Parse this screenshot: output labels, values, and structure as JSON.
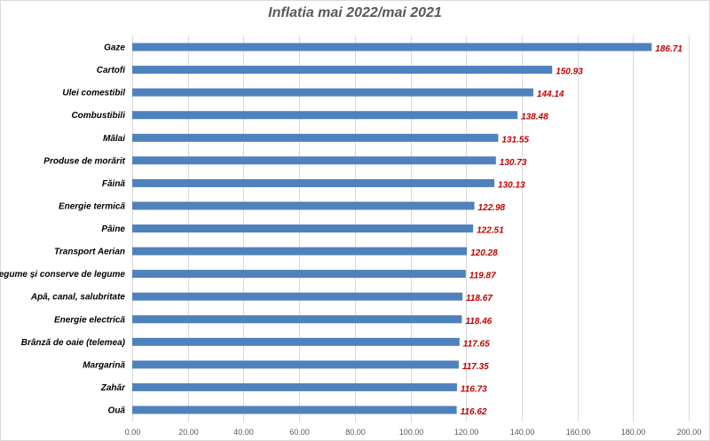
{
  "chart_data": {
    "type": "bar",
    "orientation": "horizontal",
    "title": "Inflatia mai 2022/mai 2021",
    "xlabel": "",
    "ylabel": "",
    "xlim": [
      0,
      200
    ],
    "x_ticks": [
      "0.00",
      "20.00",
      "40.00",
      "60.00",
      "80.00",
      "100.00",
      "120.00",
      "140.00",
      "160.00",
      "180.00",
      "200.00"
    ],
    "grid": true,
    "bar_color": "#4f81bd",
    "label_color": "#c00000",
    "categories": [
      "Gaze",
      "Cartofi",
      "Ulei comestibil",
      "Combustibili",
      "Mălai",
      "Produse de morărit",
      "Făină",
      "Energie termică",
      "Pâine",
      "Transport Aerian",
      "Legume și conserve de legume",
      "Apă, canal, salubritate",
      "Energie electrică",
      "Brânză de oaie (telemea)",
      "Margarină",
      "Zahăr",
      "Ouă"
    ],
    "values": [
      186.71,
      150.93,
      144.14,
      138.48,
      131.55,
      130.73,
      130.13,
      122.98,
      122.51,
      120.28,
      119.87,
      118.67,
      118.46,
      117.65,
      117.35,
      116.73,
      116.62
    ],
    "value_labels": [
      "186.71",
      "150.93",
      "144.14",
      "138.48",
      "131.55",
      "130.73",
      "130.13",
      "122.98",
      "122.51",
      "120.28",
      "119.87",
      "118.67",
      "118.46",
      "117.65",
      "117.35",
      "116.73",
      "116.62"
    ]
  }
}
